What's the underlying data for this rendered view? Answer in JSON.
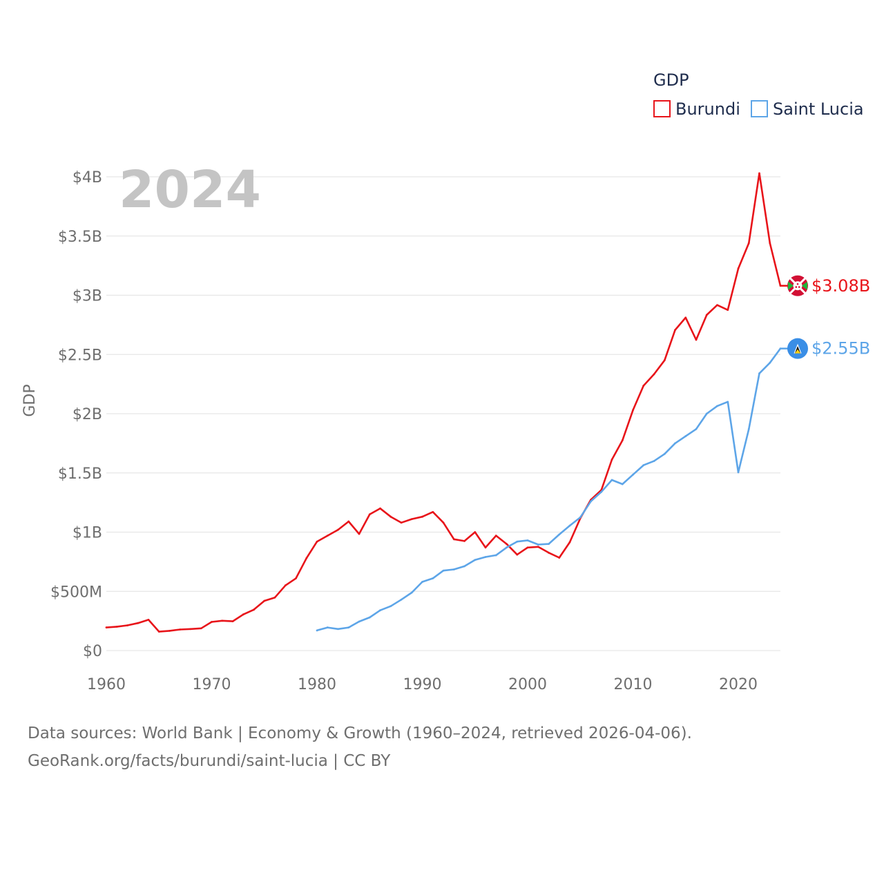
{
  "chart_data": {
    "type": "line",
    "title": "",
    "watermark_year": "2024",
    "ylabel": "GDP",
    "xlabel": "",
    "xlim": [
      1960,
      2024
    ],
    "ylim": [
      0,
      4000000000
    ],
    "x_ticks": [
      {
        "value": 1960,
        "label": "1960"
      },
      {
        "value": 1970,
        "label": "1970"
      },
      {
        "value": 1980,
        "label": "1980"
      },
      {
        "value": 1990,
        "label": "1990"
      },
      {
        "value": 2000,
        "label": "2000"
      },
      {
        "value": 2010,
        "label": "2010"
      },
      {
        "value": 2020,
        "label": "2020"
      }
    ],
    "y_ticks": [
      {
        "value": 0,
        "label": "$0"
      },
      {
        "value": 500000000,
        "label": "$500M"
      },
      {
        "value": 1000000000,
        "label": "$1B"
      },
      {
        "value": 1500000000,
        "label": "$1.5B"
      },
      {
        "value": 2000000000,
        "label": "$2B"
      },
      {
        "value": 2500000000,
        "label": "$2.5B"
      },
      {
        "value": 3000000000,
        "label": "$3B"
      },
      {
        "value": 3500000000,
        "label": "$3.5B"
      },
      {
        "value": 4000000000,
        "label": "$4B"
      }
    ],
    "grid": true,
    "legend": {
      "title": "GDP",
      "position": "top-right"
    },
    "series": [
      {
        "name": "Burundi",
        "color": "#e8141a",
        "end_label": "$3.08B",
        "flag_icon": "burundi-flag-icon",
        "x": [
          1960,
          1961,
          1962,
          1963,
          1964,
          1965,
          1966,
          1967,
          1968,
          1969,
          1970,
          1971,
          1972,
          1973,
          1974,
          1975,
          1976,
          1977,
          1978,
          1979,
          1980,
          1981,
          1982,
          1983,
          1984,
          1985,
          1986,
          1987,
          1988,
          1989,
          1990,
          1991,
          1992,
          1993,
          1994,
          1995,
          1996,
          1997,
          1998,
          1999,
          2000,
          2001,
          2002,
          2003,
          2004,
          2005,
          2006,
          2007,
          2008,
          2009,
          2010,
          2011,
          2012,
          2013,
          2014,
          2015,
          2016,
          2017,
          2018,
          2019,
          2020,
          2021,
          2022,
          2023,
          2024
        ],
        "values": [
          195000000,
          202000000,
          213000000,
          232000000,
          260000000,
          160000000,
          167000000,
          178000000,
          182000000,
          188000000,
          242000000,
          252000000,
          247000000,
          305000000,
          345000000,
          420000000,
          448000000,
          550000000,
          610000000,
          780000000,
          920000000,
          970000000,
          1020000000,
          1090000000,
          985000000,
          1150000000,
          1200000000,
          1130000000,
          1080000000,
          1110000000,
          1130000000,
          1170000000,
          1080000000,
          940000000,
          925000000,
          1000000000,
          870000000,
          970000000,
          900000000,
          810000000,
          870000000,
          876000000,
          826000000,
          784000000,
          915000000,
          1117000000,
          1273000000,
          1356000000,
          1612000000,
          1775000000,
          2030000000,
          2236000000,
          2333000000,
          2451000000,
          2706000000,
          2811000000,
          2624000000,
          2834000000,
          2917000000,
          2876000000,
          3225000000,
          3440000000,
          4030000000,
          3440000000,
          3080000000
        ]
      },
      {
        "name": "Saint Lucia",
        "color": "#5da5e8",
        "end_label": "$2.55B",
        "flag_icon": "saint-lucia-flag-icon",
        "x": [
          1980,
          1981,
          1982,
          1983,
          1984,
          1985,
          1986,
          1987,
          1988,
          1989,
          1990,
          1991,
          1992,
          1993,
          1994,
          1995,
          1996,
          1997,
          1998,
          1999,
          2000,
          2001,
          2002,
          2003,
          2004,
          2005,
          2006,
          2007,
          2008,
          2009,
          2010,
          2011,
          2012,
          2013,
          2014,
          2015,
          2016,
          2017,
          2018,
          2019,
          2020,
          2021,
          2022,
          2023,
          2024
        ],
        "values": [
          170000000,
          195000000,
          182000000,
          195000000,
          245000000,
          280000000,
          340000000,
          375000000,
          430000000,
          490000000,
          580000000,
          610000000,
          675000000,
          685000000,
          712000000,
          765000000,
          790000000,
          805000000,
          870000000,
          920000000,
          930000000,
          895000000,
          900000000,
          980000000,
          1055000000,
          1125000000,
          1260000000,
          1340000000,
          1440000000,
          1405000000,
          1485000000,
          1565000000,
          1600000000,
          1660000000,
          1750000000,
          1810000000,
          1870000000,
          2000000000,
          2065000000,
          2100000000,
          1505000000,
          1870000000,
          2340000000,
          2430000000,
          2550000000
        ]
      }
    ]
  },
  "sources": {
    "line1": "Data sources: World Bank | Economy & Growth (1960–2024, retrieved 2026-04-06).",
    "line2": "GeoRank.org/facts/burundi/saint-lucia | CC BY"
  }
}
